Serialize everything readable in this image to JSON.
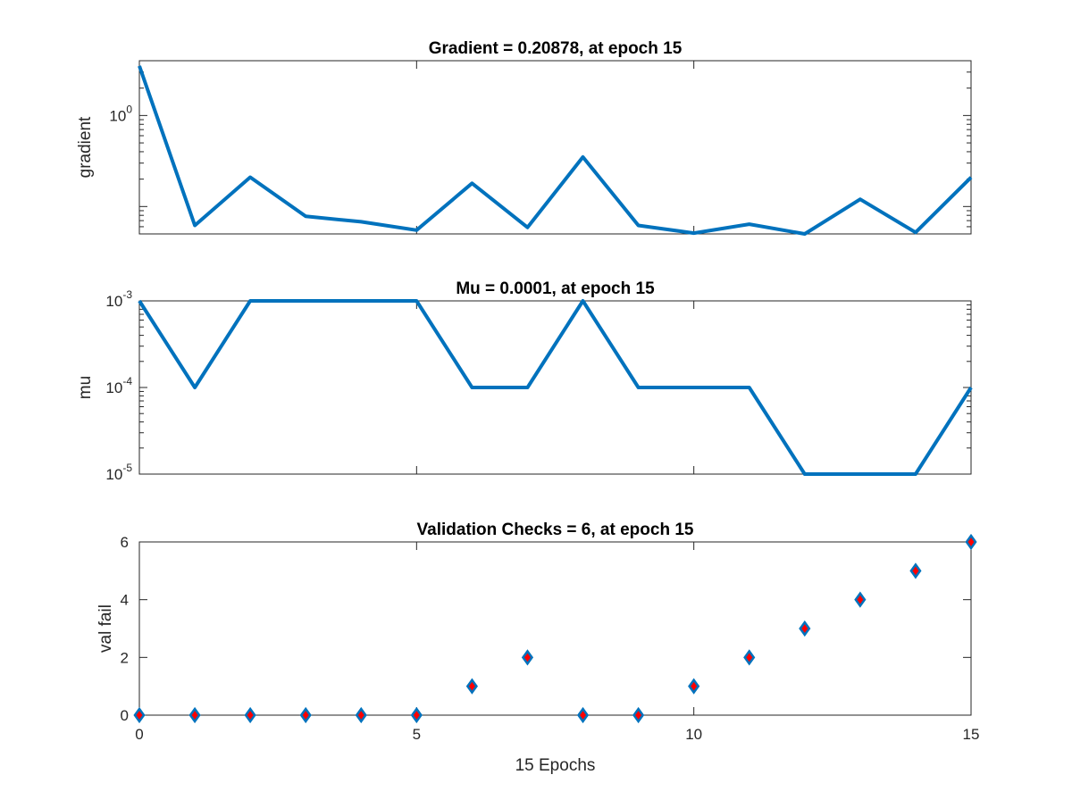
{
  "colors": {
    "line": "#0072BD",
    "marker_fill": "#FF0000",
    "marker_edge": "#0072BD",
    "axes": "#262626"
  },
  "chart_data": [
    {
      "type": "line",
      "title": "Gradient = 0.20878, at epoch 15",
      "ylabel": "gradient",
      "xlabel": "",
      "yscale": "log",
      "ylim": [
        0.05,
        4
      ],
      "xlim": [
        0,
        15
      ],
      "grid": false,
      "yticks": [
        {
          "value": 1,
          "base": "10",
          "exp": "0"
        }
      ],
      "x": [
        0,
        1,
        2,
        3,
        4,
        5,
        6,
        7,
        8,
        9,
        10,
        11,
        12,
        13,
        14,
        15
      ],
      "values": [
        3.5,
        0.062,
        0.21,
        0.078,
        0.068,
        0.055,
        0.18,
        0.059,
        0.35,
        0.062,
        0.051,
        0.064,
        0.049,
        0.12,
        0.052,
        0.20878
      ]
    },
    {
      "type": "line",
      "title": "Mu = 0.0001, at epoch 15",
      "ylabel": "mu",
      "xlabel": "",
      "yscale": "log",
      "ylim": [
        1e-05,
        0.001
      ],
      "xlim": [
        0,
        15
      ],
      "grid": false,
      "yticks": [
        {
          "value": 0.001,
          "base": "10",
          "exp": "-3"
        },
        {
          "value": 0.0001,
          "base": "10",
          "exp": "-4"
        },
        {
          "value": 1e-05,
          "base": "10",
          "exp": "-5"
        }
      ],
      "x": [
        0,
        1,
        2,
        3,
        4,
        5,
        6,
        7,
        8,
        9,
        10,
        11,
        12,
        13,
        14,
        15
      ],
      "values": [
        0.001,
        0.0001,
        0.001,
        0.001,
        0.001,
        0.001,
        0.0001,
        0.0001,
        0.001,
        0.0001,
        0.0001,
        0.0001,
        1e-05,
        1e-05,
        1e-05,
        0.0001
      ]
    },
    {
      "type": "scatter",
      "title": "Validation Checks = 6, at epoch 15",
      "ylabel": "val fail",
      "xlabel": "15 Epochs",
      "yscale": "linear",
      "ylim": [
        0,
        6
      ],
      "xlim": [
        0,
        15
      ],
      "grid": false,
      "yticks": [
        0,
        2,
        4,
        6
      ],
      "xticks": [
        0,
        5,
        10,
        15
      ],
      "x": [
        0,
        1,
        2,
        3,
        4,
        5,
        6,
        7,
        8,
        9,
        10,
        11,
        12,
        13,
        14,
        15
      ],
      "values": [
        0,
        0,
        0,
        0,
        0,
        0,
        1,
        2,
        0,
        0,
        1,
        2,
        3,
        4,
        5,
        6
      ]
    }
  ]
}
